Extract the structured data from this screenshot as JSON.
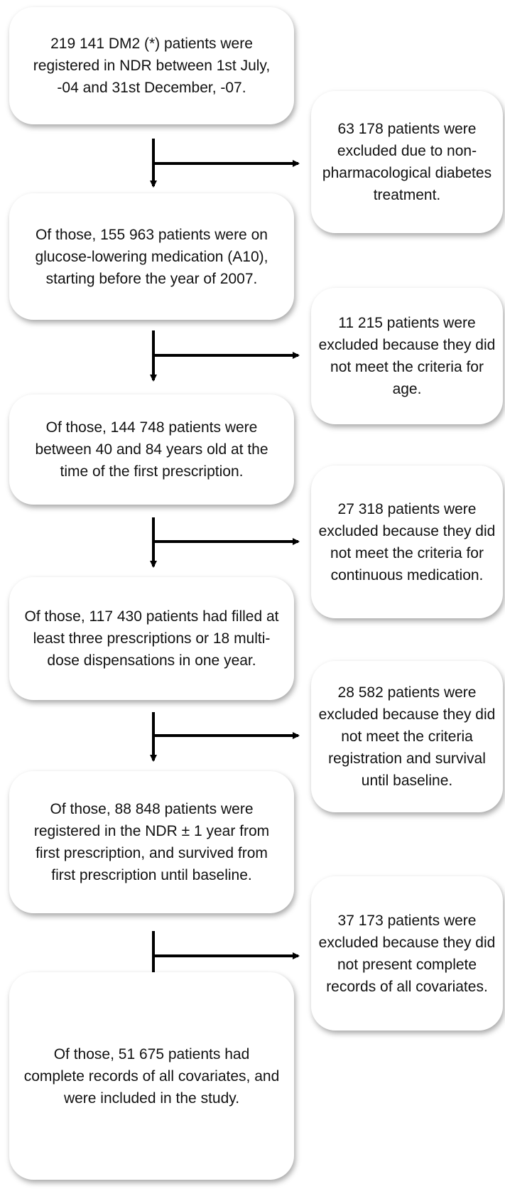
{
  "steps": [
    {
      "text": "219 141 DM2 (*) patients were registered in NDR between 1st July, -04  and 31st December, -07."
    },
    {
      "text": "Of those, 155 963 patients were on glucose-lowering medication (A10), starting before the year of 2007."
    },
    {
      "text": "Of those, 144 748 patients were between 40 and 84 years old at the time of the first prescription."
    },
    {
      "text": "Of those, 117 430 patients had filled at least three prescriptions or 18 multi-dose dispensations in one year."
    },
    {
      "text": "Of those, 88 848 patients were registered in the NDR ± 1 year from first prescription, and survived from first prescription until baseline."
    },
    {
      "text": "Of those, 51 675 patients had complete records of all covariates, and were included in the study."
    }
  ],
  "exclusions": [
    {
      "text": "63 178 patients were excluded due to non-pharmacological diabetes treatment."
    },
    {
      "text": "11 215 patients were excluded because they did not meet the criteria for age."
    },
    {
      "text": "27 318 patients were excluded because they did not meet the criteria for continuous medication."
    },
    {
      "text": "28 582 patients were excluded because they did not meet the criteria registration and survival until baseline."
    },
    {
      "text": "37 173 patients were excluded because they did not present complete records of all covariates."
    }
  ]
}
